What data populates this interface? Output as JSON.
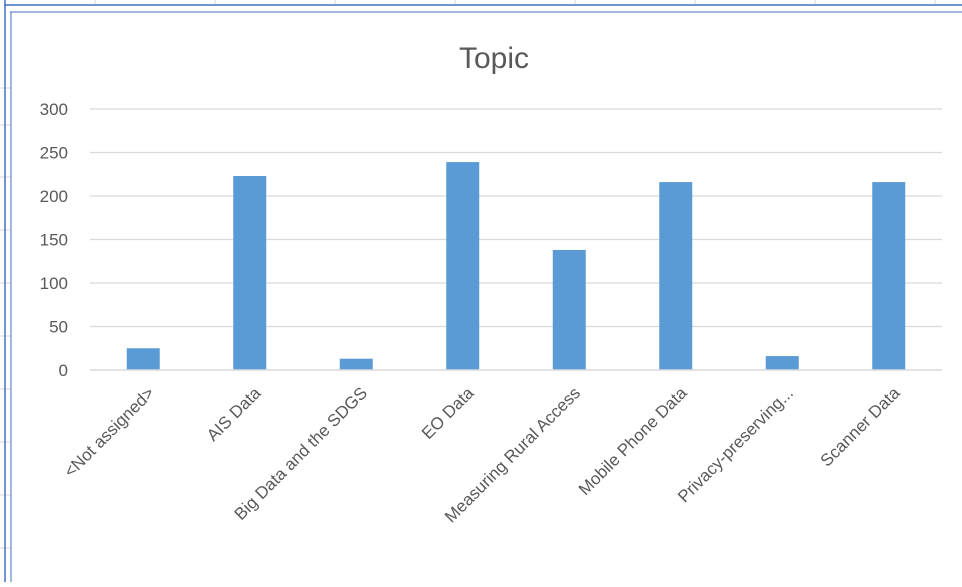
{
  "chart_data": {
    "type": "bar",
    "title": "Topic",
    "xlabel": "",
    "ylabel": "",
    "categories": [
      "<Not assigned>",
      "AIS Data",
      "Big Data and the SDGS",
      "EO Data",
      "Measuring Rural Access",
      "Mobile Phone Data",
      "Privacy-preserving...",
      "Scanner Data"
    ],
    "values": [
      25,
      223,
      13,
      239,
      138,
      216,
      16,
      216
    ],
    "ylim": [
      0,
      300
    ],
    "yticks": [
      0,
      50,
      100,
      150,
      200,
      250,
      300
    ],
    "grid": true,
    "legend": "none",
    "bar_color": "#5B9BD5",
    "grid_color": "#D9D9D9",
    "text_color": "#595959"
  },
  "sheet": {
    "border_color": "#4472C4",
    "cell_line_color": "#D4D4D4"
  }
}
